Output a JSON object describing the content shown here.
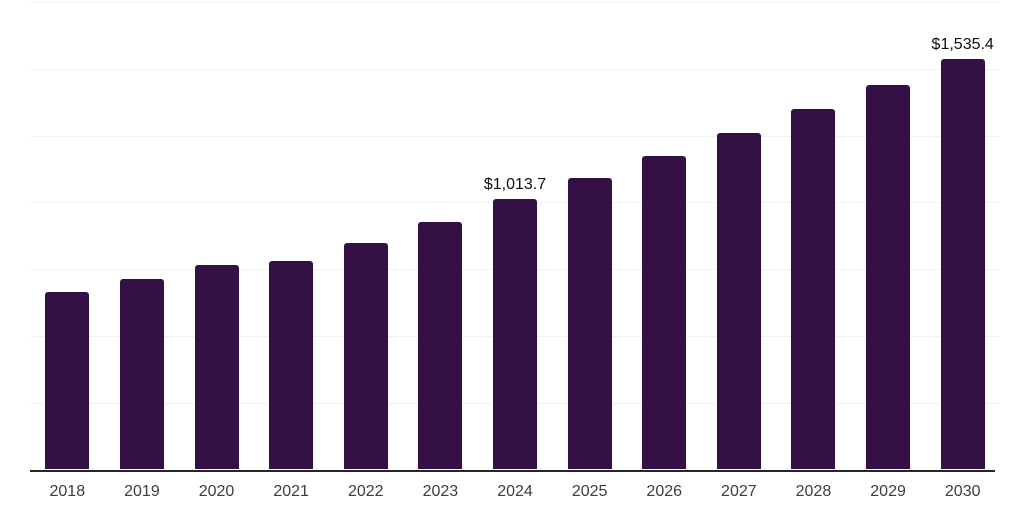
{
  "chart_data": {
    "type": "bar",
    "title": "",
    "xlabel": "",
    "ylabel": "",
    "categories": [
      "2018",
      "2019",
      "2020",
      "2021",
      "2022",
      "2023",
      "2024",
      "2025",
      "2026",
      "2027",
      "2028",
      "2029",
      "2030"
    ],
    "values": [
      663.8,
      713.9,
      764.6,
      779.6,
      846.9,
      925.2,
      1013.7,
      1092.1,
      1175.4,
      1261.3,
      1348.8,
      1439.5,
      1535.4
    ],
    "data_labels": {
      "2024": "$1,013.7",
      "2030": "$1,535.4"
    },
    "ylim": [
      0,
      1750
    ],
    "gridline_step": 250,
    "grid": true,
    "legend": false,
    "colors": {
      "bar": "#331147",
      "gridline": "#f1f1f1",
      "axis": "#262626",
      "tick_label": "#3d3d3d",
      "data_label": "#0f0f0f"
    }
  }
}
